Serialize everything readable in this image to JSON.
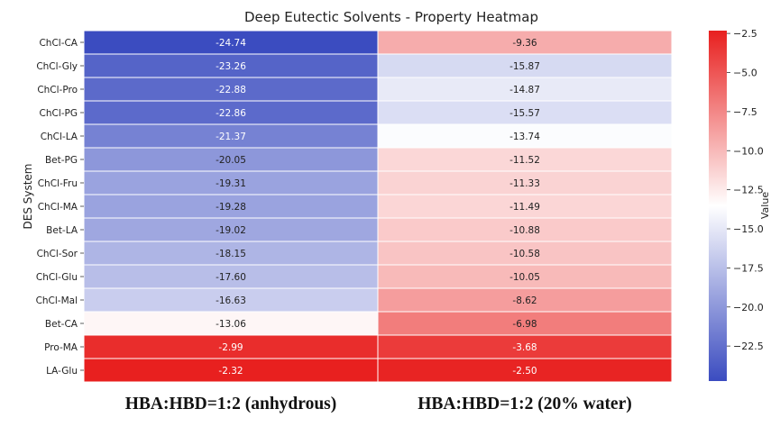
{
  "chart_data": {
    "type": "heatmap",
    "title": "Deep Eutectic Solvents - Property Heatmap",
    "ylabel": "DES System",
    "columns": [
      "HBA:HBD=1:2 (anhydrous)",
      "HBA:HBD=1:2 (20% water)"
    ],
    "rows": [
      "ChCl-CA",
      "ChCl-Gly",
      "ChCl-Pro",
      "ChCl-PG",
      "ChCl-LA",
      "Bet-PG",
      "ChCl-Fru",
      "ChCl-MA",
      "Bet-LA",
      "ChCl-Sor",
      "ChCl-Glu",
      "ChCl-Mal",
      "Bet-CA",
      "Pro-MA",
      "LA-Glu"
    ],
    "values": [
      [
        -24.74,
        -9.36
      ],
      [
        -23.26,
        -15.87
      ],
      [
        -22.88,
        -14.87
      ],
      [
        -22.86,
        -15.57
      ],
      [
        -21.37,
        -13.74
      ],
      [
        -20.05,
        -11.52
      ],
      [
        -19.31,
        -11.33
      ],
      [
        -19.28,
        -11.49
      ],
      [
        -19.02,
        -10.88
      ],
      [
        -18.15,
        -10.58
      ],
      [
        -17.6,
        -10.05
      ],
      [
        -16.63,
        -8.62
      ],
      [
        -13.06,
        -6.98
      ],
      [
        -2.99,
        -3.68
      ],
      [
        -2.32,
        -2.5
      ]
    ],
    "cell_labels": [
      [
        "-24.74",
        "-9.36"
      ],
      [
        "-23.26",
        "-15.87"
      ],
      [
        "-22.88",
        "-14.87"
      ],
      [
        "-22.86",
        "-15.57"
      ],
      [
        "-21.37",
        "-13.74"
      ],
      [
        "-20.05",
        "-11.52"
      ],
      [
        "-19.31",
        "-11.33"
      ],
      [
        "-19.28",
        "-11.49"
      ],
      [
        "-19.02",
        "-10.88"
      ],
      [
        "-18.15",
        "-10.58"
      ],
      [
        "-17.60",
        "-10.05"
      ],
      [
        "-16.63",
        "-8.62"
      ],
      [
        "-13.06",
        "-6.98"
      ],
      [
        "-2.99",
        "-3.68"
      ],
      [
        "-2.32",
        "-2.50"
      ]
    ],
    "colorbar": {
      "label": "Value",
      "colormap": "bwr",
      "vmin": -24.74,
      "vmax": -2.32,
      "ticks": [
        -2.5,
        -5.0,
        -7.5,
        -10.0,
        -12.5,
        -15.0,
        -17.5,
        -20.0,
        -22.5
      ],
      "tick_labels": [
        "−2.5",
        "−5.0",
        "−7.5",
        "−10.0",
        "−12.5",
        "−15.0",
        "−17.5",
        "−20.0",
        "−22.5"
      ]
    },
    "colors": {
      "low": "#3b4cc0",
      "mid": "#ffffff",
      "high": "#e8201f",
      "cell_text": "#222222",
      "cell_text_dark": "#ffffff"
    }
  }
}
